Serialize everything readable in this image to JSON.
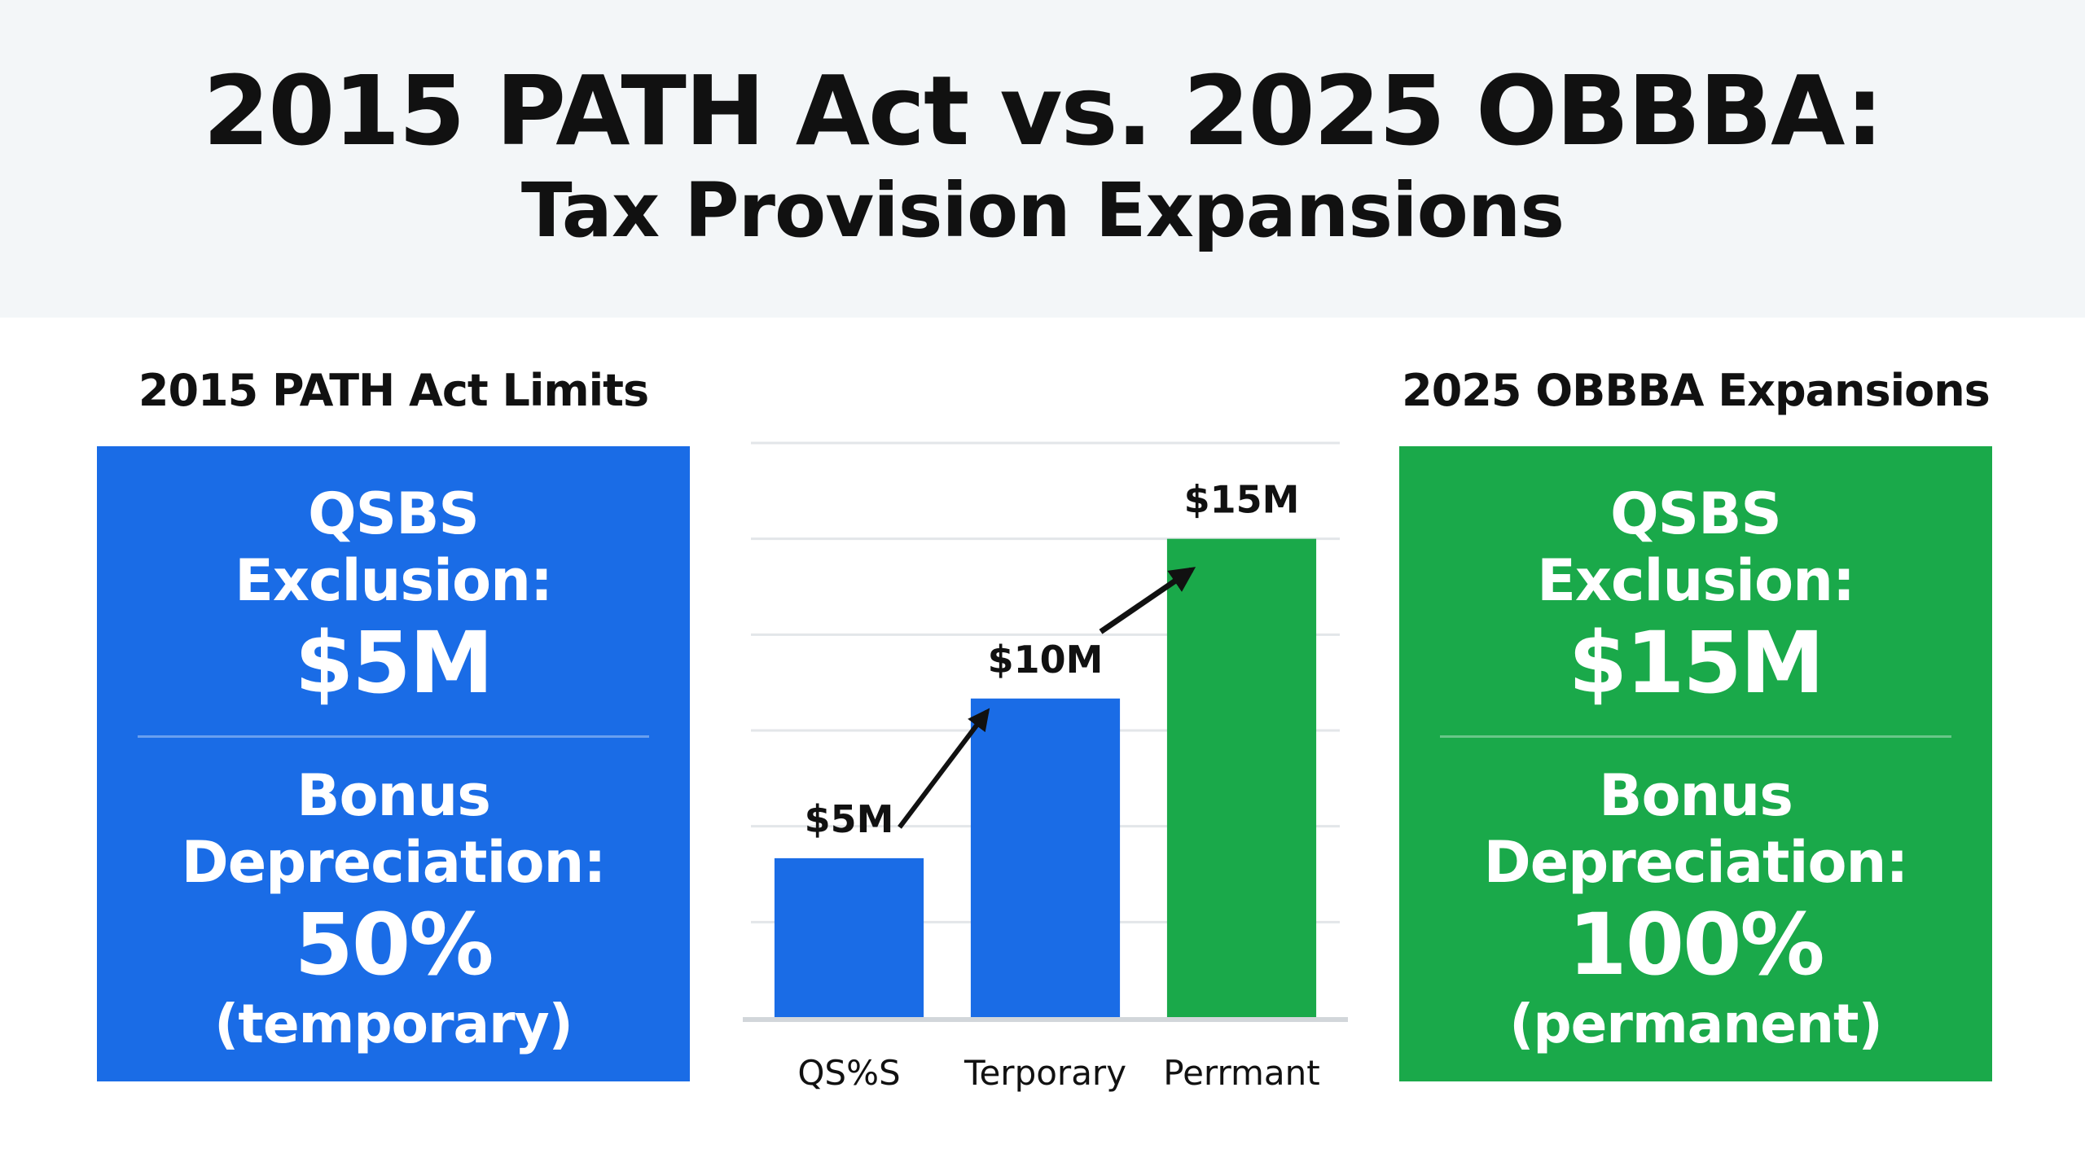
{
  "header": {
    "title": "2015 PATH Act vs. 2025 OBBBA:",
    "subtitle": "Tax Provision Expansions"
  },
  "left_panel": {
    "heading": "2015 PATH Act Limits",
    "qsbs_label_line1": "QSBS",
    "qsbs_label_line2": "Exclusion:",
    "qsbs_value": "$5M",
    "bonus_label_line1": "Bonus",
    "bonus_label_line2": "Depreciation:",
    "bonus_value": "50%",
    "bonus_note": "(temporary)",
    "color": "#1a6ce6"
  },
  "right_panel": {
    "heading": "2025 OBBBA Expansions",
    "qsbs_label_line1": "QSBS",
    "qsbs_label_line2": "Exclusion:",
    "qsbs_value": "$15M",
    "bonus_label_line1": "Bonus",
    "bonus_label_line2": "Depreciation:",
    "bonus_value": "100%",
    "bonus_note": "(permanent)",
    "color": "#1aa94a"
  },
  "chart_data": {
    "type": "bar",
    "categories": [
      "QS%S",
      "Terporary",
      "Perrmant"
    ],
    "values": [
      5,
      10,
      15
    ],
    "data_labels": [
      "$5M",
      "$10M",
      "$15M"
    ],
    "colors": [
      "#1a6ce6",
      "#1a6ce6",
      "#1aa94a"
    ],
    "ylim": [
      0,
      18
    ],
    "grid": true,
    "arrows": true,
    "title": "",
    "xlabel": "",
    "ylabel": ""
  }
}
